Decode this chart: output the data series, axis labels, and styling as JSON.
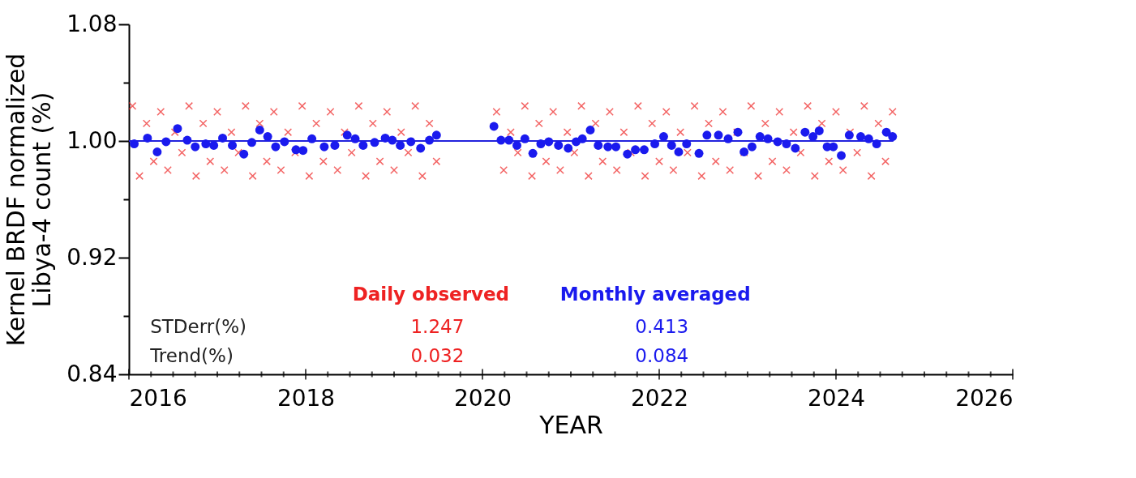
{
  "chart_data": {
    "type": "scatter",
    "xlabel": "YEAR",
    "ylabel": "Kernel BRDF normalized\nLibya-4 count (%)",
    "xlim": [
      2016,
      2026
    ],
    "ylim": [
      0.84,
      1.08
    ],
    "xticks": [
      2016,
      {
        "value": 2016.25,
        "label": null
      },
      {
        "value": 2016.5,
        "label": null
      },
      {
        "value": 2016.75,
        "label": null
      },
      {
        "value": 2017,
        "label": null
      },
      {
        "value": 2017.25,
        "label": null
      },
      {
        "value": 2017.5,
        "label": null
      },
      {
        "value": 2017.75,
        "label": null
      },
      2018,
      {
        "value": 2018.25,
        "label": null
      },
      {
        "value": 2018.5,
        "label": null
      },
      {
        "value": 2018.75,
        "label": null
      },
      {
        "value": 2019,
        "label": null
      },
      {
        "value": 2019.25,
        "label": null
      },
      {
        "value": 2019.5,
        "label": null
      },
      {
        "value": 2019.75,
        "label": null
      },
      2020,
      {
        "value": 2020.25,
        "label": null
      },
      {
        "value": 2020.5,
        "label": null
      },
      {
        "value": 2020.75,
        "label": null
      },
      {
        "value": 2021,
        "label": null
      },
      {
        "value": 2021.25,
        "label": null
      },
      {
        "value": 2021.5,
        "label": null
      },
      {
        "value": 2021.75,
        "label": null
      },
      2022,
      {
        "value": 2022.25,
        "label": null
      },
      {
        "value": 2022.5,
        "label": null
      },
      {
        "value": 2022.75,
        "label": null
      },
      {
        "value": 2023,
        "label": null
      },
      {
        "value": 2023.25,
        "label": null
      },
      {
        "value": 2023.5,
        "label": null
      },
      {
        "value": 2023.75,
        "label": null
      },
      2024,
      {
        "value": 2024.25,
        "label": null
      },
      {
        "value": 2024.5,
        "label": null
      },
      {
        "value": 2024.75,
        "label": null
      },
      {
        "value": 2025,
        "label": null
      },
      {
        "value": 2025.25,
        "label": null
      },
      {
        "value": 2025.5,
        "label": null
      },
      {
        "value": 2025.75,
        "label": null
      },
      2026
    ],
    "yticks": [
      0.84,
      {
        "value": 0.88,
        "label": null
      },
      0.92,
      {
        "value": 0.96,
        "label": null
      },
      {
        "value": 1.0,
        "label": "1.00"
      },
      {
        "value": 1.04,
        "label": null
      },
      1.08
    ],
    "grid": false,
    "annotations": [
      "STDerr(%)",
      "1.247",
      "0.413",
      "Trend(%)",
      "0.032",
      "0.084"
    ],
    "series": [
      {
        "name": "Daily observed",
        "color": "#ee2222",
        "marker": "cross",
        "x": [
          2016.04,
          2016.12,
          2016.2,
          2016.28,
          2016.36,
          2016.44,
          2016.52,
          2016.6,
          2016.68,
          2016.76,
          2016.84,
          2016.92,
          2017.0,
          2017.08,
          2017.16,
          2017.24,
          2017.32,
          2017.4,
          2017.48,
          2017.56,
          2017.64,
          2017.72,
          2017.8,
          2017.88,
          2017.96,
          2018.04,
          2018.12,
          2018.2,
          2018.28,
          2018.36,
          2018.44,
          2018.52,
          2018.6,
          2018.68,
          2018.76,
          2018.84,
          2018.92,
          2019.0,
          2019.08,
          2019.16,
          2019.24,
          2019.32,
          2019.4,
          2019.48,
          2020.16,
          2020.24,
          2020.32,
          2020.4,
          2020.48,
          2020.56,
          2020.64,
          2020.72,
          2020.8,
          2020.88,
          2020.96,
          2021.04,
          2021.12,
          2021.2,
          2021.28,
          2021.36,
          2021.44,
          2021.52,
          2021.6,
          2021.68,
          2021.76,
          2021.84,
          2021.92,
          2022.0,
          2022.08,
          2022.16,
          2022.24,
          2022.32,
          2022.4,
          2022.48,
          2022.56,
          2022.64,
          2022.72,
          2022.8,
          2022.88,
          2022.96,
          2023.04,
          2023.12,
          2023.2,
          2023.28,
          2023.36,
          2023.44,
          2023.52,
          2023.6,
          2023.68,
          2023.76,
          2023.84,
          2023.92,
          2024.0,
          2024.08,
          2024.16,
          2024.24,
          2024.32,
          2024.4,
          2024.48,
          2024.56,
          2024.64
        ],
        "values": [
          1.024,
          0.976,
          1.012,
          0.986,
          1.02,
          0.98,
          1.006,
          0.992,
          1.024,
          0.976,
          1.012,
          0.986,
          1.02,
          0.98,
          1.006,
          0.992,
          1.024,
          0.976,
          1.012,
          0.986,
          1.02,
          0.98,
          1.006,
          0.992,
          1.024,
          0.976,
          1.012,
          0.986,
          1.02,
          0.98,
          1.006,
          0.992,
          1.024,
          0.976,
          1.012,
          0.986,
          1.02,
          0.98,
          1.006,
          0.992,
          1.024,
          0.976,
          1.012,
          0.986,
          1.02,
          0.98,
          1.006,
          0.992,
          1.024,
          0.976,
          1.012,
          0.986,
          1.02,
          0.98,
          1.006,
          0.992,
          1.024,
          0.976,
          1.012,
          0.986,
          1.02,
          0.98,
          1.006,
          0.992,
          1.024,
          0.976,
          1.012,
          0.986,
          1.02,
          0.98,
          1.006,
          0.992,
          1.024,
          0.976,
          1.012,
          0.986,
          1.02,
          0.98,
          1.006,
          0.992,
          1.024,
          0.976,
          1.012,
          0.986,
          1.02,
          0.98,
          1.006,
          0.992,
          1.024,
          0.976,
          1.012,
          0.986,
          1.02,
          0.98,
          1.006,
          0.992,
          1.024,
          0.976,
          1.012,
          0.986,
          1.02
        ]
      },
      {
        "color": "#2222dd",
        "type": "line",
        "marker": "none",
        "line_style": "solid",
        "x": [
          2016.0,
          2024.65
        ],
        "values": [
          1.0,
          1.0
        ]
      },
      {
        "name": "Monthly averaged",
        "color": "#1a1aee",
        "marker": "circle",
        "x": [
          2016.06,
          2016.21,
          2016.32,
          2016.42,
          2016.55,
          2016.66,
          2016.75,
          2016.87,
          2016.96,
          2017.06,
          2017.17,
          2017.3,
          2017.39,
          2017.48,
          2017.57,
          2017.66,
          2017.76,
          2017.89,
          2017.97,
          2018.07,
          2018.21,
          2018.33,
          2018.47,
          2018.56,
          2018.65,
          2018.78,
          2018.9,
          2018.98,
          2019.07,
          2019.19,
          2019.3,
          2019.4,
          2019.48,
          2020.13,
          2020.21,
          2020.3,
          2020.39,
          2020.48,
          2020.57,
          2020.66,
          2020.75,
          2020.86,
          2020.97,
          2021.06,
          2021.13,
          2021.22,
          2021.31,
          2021.42,
          2021.51,
          2021.64,
          2021.73,
          2021.83,
          2021.95,
          2022.05,
          2022.14,
          2022.22,
          2022.31,
          2022.45,
          2022.54,
          2022.67,
          2022.78,
          2022.89,
          2022.96,
          2023.05,
          2023.14,
          2023.23,
          2023.34,
          2023.44,
          2023.54,
          2023.65,
          2023.74,
          2023.81,
          2023.9,
          2023.97,
          2024.06,
          2024.15,
          2024.28,
          2024.37,
          2024.46,
          2024.57,
          2024.64
        ],
        "values": [
          0.998,
          1.002,
          0.9925,
          0.9995,
          1.0085,
          1.0005,
          0.996,
          0.998,
          0.997,
          1.002,
          0.997,
          0.991,
          0.999,
          1.0075,
          1.003,
          0.996,
          0.9995,
          0.994,
          0.9935,
          1.0015,
          0.996,
          0.997,
          1.004,
          1.0015,
          0.997,
          0.999,
          1.002,
          1.0005,
          0.997,
          0.9995,
          0.995,
          1.0005,
          1.004,
          1.01,
          1.0005,
          1.0005,
          0.997,
          1.0015,
          0.9915,
          0.998,
          0.9995,
          0.997,
          0.995,
          0.9995,
          1.0015,
          1.0075,
          0.997,
          0.996,
          0.996,
          0.991,
          0.994,
          0.994,
          0.998,
          1.003,
          0.997,
          0.9925,
          0.998,
          0.9915,
          1.004,
          1.004,
          1.0015,
          1.006,
          0.9925,
          0.996,
          1.003,
          1.0015,
          0.9995,
          0.998,
          0.995,
          1.006,
          1.003,
          1.007,
          0.996,
          0.996,
          0.99,
          1.004,
          1.003,
          1.0015,
          0.998,
          1.006,
          1.003
        ]
      }
    ]
  }
}
